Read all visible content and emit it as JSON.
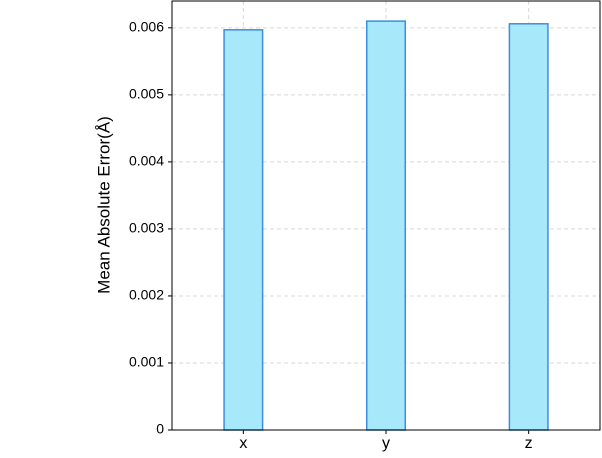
{
  "chart_data": {
    "type": "bar",
    "y_label": "Mean Absolute Error(Å)",
    "categories": [
      "x",
      "y",
      "z"
    ],
    "values": [
      0.00597,
      0.0061,
      0.00606
    ],
    "color": "#a8e8fb",
    "edge_color": "#3a8fe0",
    "ylim": [
      0,
      0.0064
    ],
    "yticks": [
      0,
      0.001,
      0.002,
      0.003,
      0.004,
      0.005,
      0.006
    ],
    "grid": true
  }
}
